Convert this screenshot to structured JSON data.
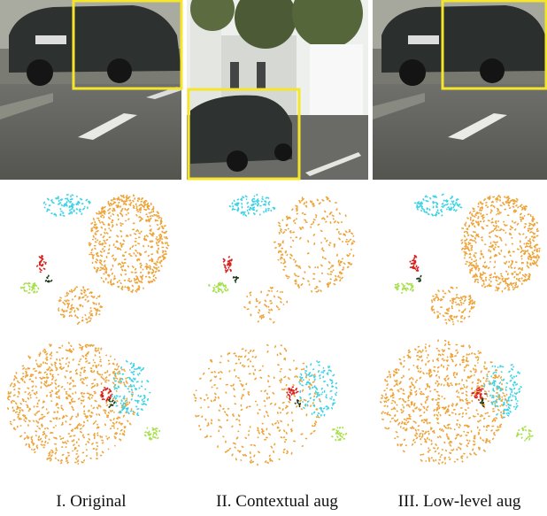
{
  "captions": [
    "I. Original",
    "II. Contextual aug",
    "III. Low-level aug"
  ]
}
